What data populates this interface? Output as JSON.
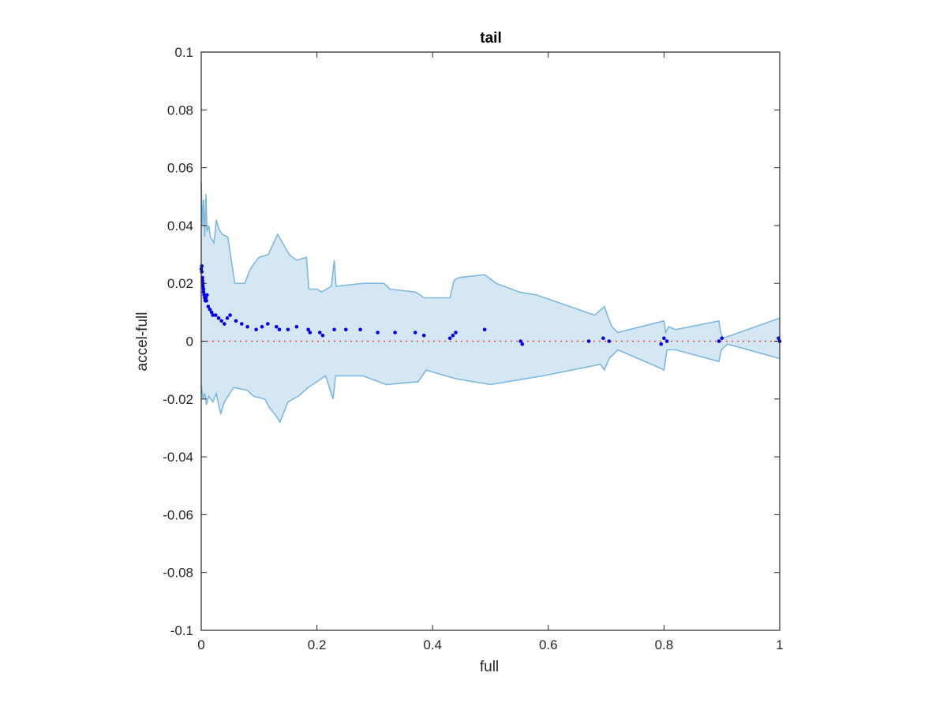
{
  "chart_data": {
    "type": "scatter",
    "title": "tail",
    "xlabel": "full",
    "ylabel": "accel-full",
    "xlim": [
      0,
      1
    ],
    "ylim": [
      -0.1,
      0.1
    ],
    "grid": false,
    "legend": "none",
    "x_ticks": [
      {
        "value": 0,
        "label": "0"
      },
      {
        "value": 0.2,
        "label": "0.2"
      },
      {
        "value": 0.4,
        "label": "0.4"
      },
      {
        "value": 0.6,
        "label": "0.6"
      },
      {
        "value": 0.8,
        "label": "0.8"
      },
      {
        "value": 1,
        "label": "1"
      }
    ],
    "y_ticks": [
      {
        "value": 0.1,
        "label": "0.1"
      },
      {
        "value": 0.08,
        "label": "0.08"
      },
      {
        "value": 0.06,
        "label": "0.06"
      },
      {
        "value": 0.04,
        "label": "0.04"
      },
      {
        "value": 0.02,
        "label": "0.02"
      },
      {
        "value": 0,
        "label": "0"
      },
      {
        "value": -0.02,
        "label": "-0.02"
      },
      {
        "value": -0.04,
        "label": "-0.04"
      },
      {
        "value": -0.06,
        "label": "-0.06"
      },
      {
        "value": -0.08,
        "label": "-0.08"
      },
      {
        "value": -0.1,
        "label": "-0.1"
      }
    ],
    "reference_line": {
      "y": 0,
      "color": "#ff3b30",
      "style": "dotted"
    },
    "band": {
      "color": "#7fb8de",
      "fill": "#d6e7f4",
      "upper": [
        [
          0.0,
          0.055
        ],
        [
          0.002,
          0.04
        ],
        [
          0.004,
          0.049
        ],
        [
          0.006,
          0.036
        ],
        [
          0.008,
          0.051
        ],
        [
          0.01,
          0.038
        ],
        [
          0.013,
          0.04
        ],
        [
          0.016,
          0.036
        ],
        [
          0.022,
          0.034
        ],
        [
          0.026,
          0.042
        ],
        [
          0.03,
          0.039
        ],
        [
          0.036,
          0.037
        ],
        [
          0.046,
          0.036
        ],
        [
          0.058,
          0.02
        ],
        [
          0.075,
          0.02
        ],
        [
          0.085,
          0.025
        ],
        [
          0.092,
          0.027
        ],
        [
          0.1,
          0.029
        ],
        [
          0.116,
          0.03
        ],
        [
          0.132,
          0.037
        ],
        [
          0.152,
          0.03
        ],
        [
          0.165,
          0.028
        ],
        [
          0.182,
          0.029
        ],
        [
          0.186,
          0.018
        ],
        [
          0.2,
          0.018
        ],
        [
          0.208,
          0.017
        ],
        [
          0.225,
          0.019
        ],
        [
          0.23,
          0.028
        ],
        [
          0.233,
          0.019
        ],
        [
          0.28,
          0.02
        ],
        [
          0.316,
          0.02
        ],
        [
          0.326,
          0.018
        ],
        [
          0.37,
          0.017
        ],
        [
          0.386,
          0.015
        ],
        [
          0.43,
          0.015
        ],
        [
          0.437,
          0.021
        ],
        [
          0.445,
          0.022
        ],
        [
          0.49,
          0.023
        ],
        [
          0.51,
          0.02
        ],
        [
          0.55,
          0.017
        ],
        [
          0.58,
          0.016
        ],
        [
          0.68,
          0.009
        ],
        [
          0.697,
          0.012
        ],
        [
          0.702,
          0.009
        ],
        [
          0.71,
          0.005
        ],
        [
          0.72,
          0.003
        ],
        [
          0.8,
          0.007
        ],
        [
          0.803,
          0.003
        ],
        [
          0.808,
          0.005
        ],
        [
          0.82,
          0.004
        ],
        [
          0.895,
          0.007
        ],
        [
          0.898,
          0.003
        ],
        [
          0.902,
          0.001
        ],
        [
          1.0,
          0.008
        ]
      ],
      "lower": [
        [
          0.0,
          -0.015
        ],
        [
          0.003,
          -0.02
        ],
        [
          0.006,
          -0.018
        ],
        [
          0.009,
          -0.022
        ],
        [
          0.013,
          -0.019
        ],
        [
          0.02,
          -0.021
        ],
        [
          0.026,
          -0.018
        ],
        [
          0.03,
          -0.022
        ],
        [
          0.034,
          -0.025
        ],
        [
          0.04,
          -0.021
        ],
        [
          0.056,
          -0.016
        ],
        [
          0.08,
          -0.017
        ],
        [
          0.09,
          -0.019
        ],
        [
          0.11,
          -0.02
        ],
        [
          0.118,
          -0.023
        ],
        [
          0.13,
          -0.026
        ],
        [
          0.136,
          -0.028
        ],
        [
          0.15,
          -0.021
        ],
        [
          0.168,
          -0.019
        ],
        [
          0.185,
          -0.016
        ],
        [
          0.215,
          -0.012
        ],
        [
          0.228,
          -0.02
        ],
        [
          0.232,
          -0.012
        ],
        [
          0.28,
          -0.012
        ],
        [
          0.32,
          -0.015
        ],
        [
          0.375,
          -0.014
        ],
        [
          0.389,
          -0.01
        ],
        [
          0.44,
          -0.013
        ],
        [
          0.5,
          -0.015
        ],
        [
          0.56,
          -0.013
        ],
        [
          0.59,
          -0.012
        ],
        [
          0.69,
          -0.008
        ],
        [
          0.697,
          -0.01
        ],
        [
          0.705,
          -0.006
        ],
        [
          0.72,
          -0.003
        ],
        [
          0.79,
          -0.009
        ],
        [
          0.8,
          -0.01
        ],
        [
          0.805,
          -0.003
        ],
        [
          0.82,
          -0.003
        ],
        [
          0.895,
          -0.007
        ],
        [
          0.899,
          -0.003
        ],
        [
          0.91,
          -0.001
        ],
        [
          1.0,
          -0.006
        ]
      ]
    },
    "series": [
      {
        "color": "#0000ee",
        "points": [
          [
            0.0,
            0.025
          ],
          [
            0.001,
            0.026
          ],
          [
            0.001,
            0.024
          ],
          [
            0.002,
            0.022
          ],
          [
            0.002,
            0.021
          ],
          [
            0.003,
            0.02
          ],
          [
            0.003,
            0.019
          ],
          [
            0.004,
            0.018
          ],
          [
            0.004,
            0.017
          ],
          [
            0.005,
            0.016
          ],
          [
            0.006,
            0.015
          ],
          [
            0.007,
            0.014
          ],
          [
            0.008,
            0.015
          ],
          [
            0.009,
            0.014
          ],
          [
            0.01,
            0.016
          ],
          [
            0.012,
            0.012
          ],
          [
            0.015,
            0.011
          ],
          [
            0.018,
            0.01
          ],
          [
            0.02,
            0.009
          ],
          [
            0.025,
            0.009
          ],
          [
            0.03,
            0.008
          ],
          [
            0.035,
            0.007
          ],
          [
            0.04,
            0.006
          ],
          [
            0.045,
            0.008
          ],
          [
            0.05,
            0.009
          ],
          [
            0.06,
            0.007
          ],
          [
            0.07,
            0.006
          ],
          [
            0.08,
            0.005
          ],
          [
            0.095,
            0.004
          ],
          [
            0.105,
            0.005
          ],
          [
            0.115,
            0.006
          ],
          [
            0.13,
            0.005
          ],
          [
            0.135,
            0.004
          ],
          [
            0.15,
            0.004
          ],
          [
            0.165,
            0.005
          ],
          [
            0.185,
            0.004
          ],
          [
            0.188,
            0.003
          ],
          [
            0.205,
            0.003
          ],
          [
            0.21,
            0.002
          ],
          [
            0.23,
            0.004
          ],
          [
            0.25,
            0.004
          ],
          [
            0.275,
            0.004
          ],
          [
            0.305,
            0.003
          ],
          [
            0.335,
            0.003
          ],
          [
            0.37,
            0.003
          ],
          [
            0.385,
            0.002
          ],
          [
            0.43,
            0.001
          ],
          [
            0.435,
            0.002
          ],
          [
            0.44,
            0.003
          ],
          [
            0.49,
            0.004
          ],
          [
            0.552,
            0.0
          ],
          [
            0.555,
            -0.001
          ],
          [
            0.67,
            0.0
          ],
          [
            0.695,
            0.001
          ],
          [
            0.705,
            0.0
          ],
          [
            0.795,
            -0.001
          ],
          [
            0.8,
            0.001
          ],
          [
            0.805,
            0.0
          ],
          [
            0.895,
            0.0
          ],
          [
            0.9,
            0.001
          ],
          [
            0.998,
            0.001
          ],
          [
            1.0,
            0.0
          ]
        ]
      }
    ]
  }
}
